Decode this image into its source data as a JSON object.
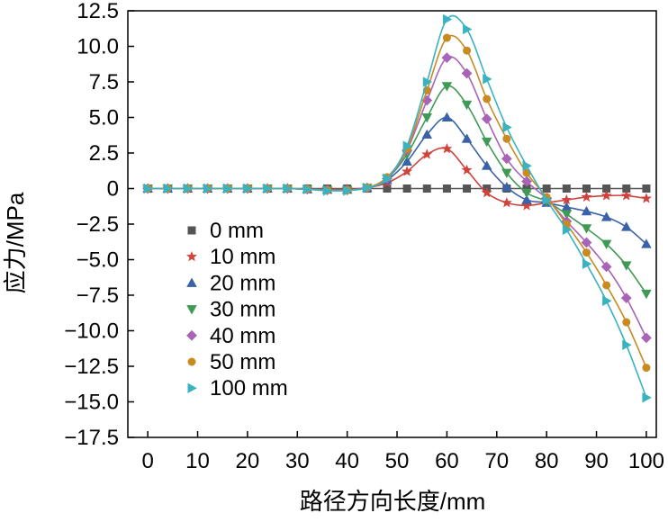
{
  "chart_data": {
    "type": "line",
    "title": "",
    "xlabel": "路径方向长度/mm",
    "ylabel": "应力/MPa",
    "xlim": [
      -4,
      102
    ],
    "ylim": [
      -17.5,
      12.5
    ],
    "x_ticks": [
      0,
      10,
      20,
      30,
      40,
      50,
      60,
      70,
      80,
      90,
      100
    ],
    "x_tick_labels": [
      "0",
      "10",
      "20",
      "30",
      "40",
      "50",
      "60",
      "70",
      "80",
      "90",
      "100"
    ],
    "y_ticks": [
      12.5,
      10,
      7.5,
      5,
      2.5,
      0,
      -2.5,
      -5,
      -7.5,
      -10,
      -12.5,
      -15,
      -17.5
    ],
    "y_tick_labels": [
      "12.5",
      "10.0",
      "7.5",
      "5.0",
      "2.5",
      "0",
      "−2.5",
      "−5.0",
      "−7.5",
      "−10.0",
      "−12.5",
      "−15.0",
      "−17.5"
    ],
    "grid": false,
    "legend_position": "left-middle",
    "x": [
      0,
      4,
      8,
      12,
      16,
      20,
      24,
      28,
      32,
      36,
      40,
      44,
      48,
      52,
      56,
      60,
      64,
      68,
      72,
      76,
      80,
      84,
      88,
      92,
      96,
      100
    ],
    "series": [
      {
        "name": "0 mm",
        "marker": "square",
        "color": "#555555",
        "values": [
          0,
          0,
          0,
          0,
          0,
          0,
          0,
          0,
          0,
          0,
          0,
          0,
          0,
          0,
          0,
          0,
          0,
          0,
          0,
          0,
          0,
          0,
          0,
          0,
          0,
          0
        ]
      },
      {
        "name": "10 mm",
        "marker": "star",
        "color": "#d0433c",
        "values": [
          0,
          0,
          0,
          0,
          0,
          0,
          0,
          0,
          -0.05,
          -0.05,
          -0.05,
          0.05,
          0.4,
          1.2,
          2.4,
          2.8,
          1.3,
          -0.3,
          -1.0,
          -1.2,
          -1.0,
          -0.8,
          -0.6,
          -0.5,
          -0.5,
          -0.7
        ]
      },
      {
        "name": "20 mm",
        "marker": "triangle-up",
        "color": "#3a62a8",
        "values": [
          0,
          0,
          0,
          0,
          0,
          0,
          0,
          0,
          -0.05,
          -0.08,
          -0.08,
          0.05,
          0.6,
          1.9,
          3.8,
          5.0,
          3.5,
          1.6,
          0.1,
          -0.8,
          -1.0,
          -1.3,
          -1.6,
          -2.0,
          -2.7,
          -3.9
        ]
      },
      {
        "name": "30 mm",
        "marker": "triangle-down",
        "color": "#3f9a55",
        "values": [
          0,
          0,
          0,
          0,
          0,
          0,
          0,
          0,
          -0.05,
          -0.1,
          -0.1,
          0.05,
          0.7,
          2.4,
          5.0,
          7.2,
          5.9,
          3.3,
          1.1,
          -0.3,
          -0.9,
          -1.8,
          -2.8,
          -3.9,
          -5.4,
          -7.4
        ]
      },
      {
        "name": "40 mm",
        "marker": "diamond",
        "color": "#a864b6",
        "values": [
          0,
          0,
          0,
          0,
          0,
          0,
          0,
          0,
          -0.05,
          -0.1,
          -0.1,
          0.05,
          0.7,
          2.7,
          6.2,
          9.2,
          8.1,
          4.9,
          2.1,
          0.5,
          -0.7,
          -2.3,
          -3.8,
          -5.5,
          -7.7,
          -10.5
        ]
      },
      {
        "name": "50 mm",
        "marker": "circle",
        "color": "#c98a22",
        "values": [
          0,
          0,
          0,
          0,
          0,
          0,
          0,
          0,
          -0.05,
          -0.12,
          -0.12,
          0.05,
          0.8,
          2.8,
          6.9,
          10.6,
          9.7,
          6.3,
          3.5,
          1.1,
          -0.6,
          -2.5,
          -4.5,
          -6.8,
          -9.4,
          -12.6
        ]
      },
      {
        "name": "100 mm",
        "marker": "triangle-right",
        "color": "#3ab3c0",
        "values": [
          0,
          0,
          0,
          0,
          0,
          0,
          0,
          0,
          -0.05,
          -0.15,
          -0.15,
          0.05,
          0.7,
          3.0,
          7.5,
          11.9,
          11.2,
          7.7,
          4.3,
          1.6,
          -0.8,
          -2.9,
          -5.3,
          -7.9,
          -11.0,
          -14.7
        ]
      }
    ]
  }
}
